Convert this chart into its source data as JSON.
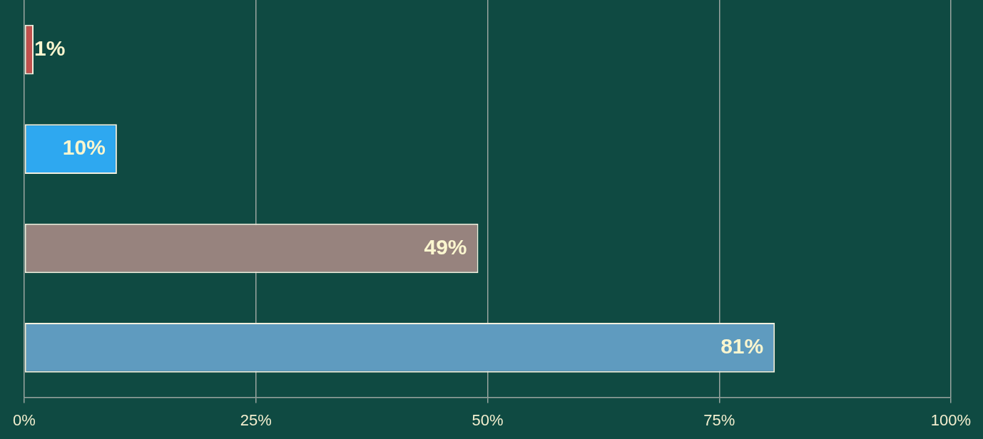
{
  "chart_data": {
    "type": "bar",
    "orientation": "horizontal",
    "categories": [
      null,
      null,
      null,
      null
    ],
    "values": [
      1,
      10,
      49,
      81
    ],
    "colors": [
      "#c0504d",
      "#2ea8f0",
      "#97837e",
      "#5f9bbf"
    ],
    "value_labels": [
      "1%",
      "10%",
      "49%",
      "81%"
    ],
    "xlim": [
      0,
      100
    ],
    "xticks": [
      {
        "value": 0,
        "label": "0%"
      },
      {
        "value": 25,
        "label": "25%"
      },
      {
        "value": 50,
        "label": "50%"
      },
      {
        "value": 75,
        "label": "75%"
      },
      {
        "value": 100,
        "label": "100%"
      }
    ],
    "grid": "x",
    "legend": false
  }
}
